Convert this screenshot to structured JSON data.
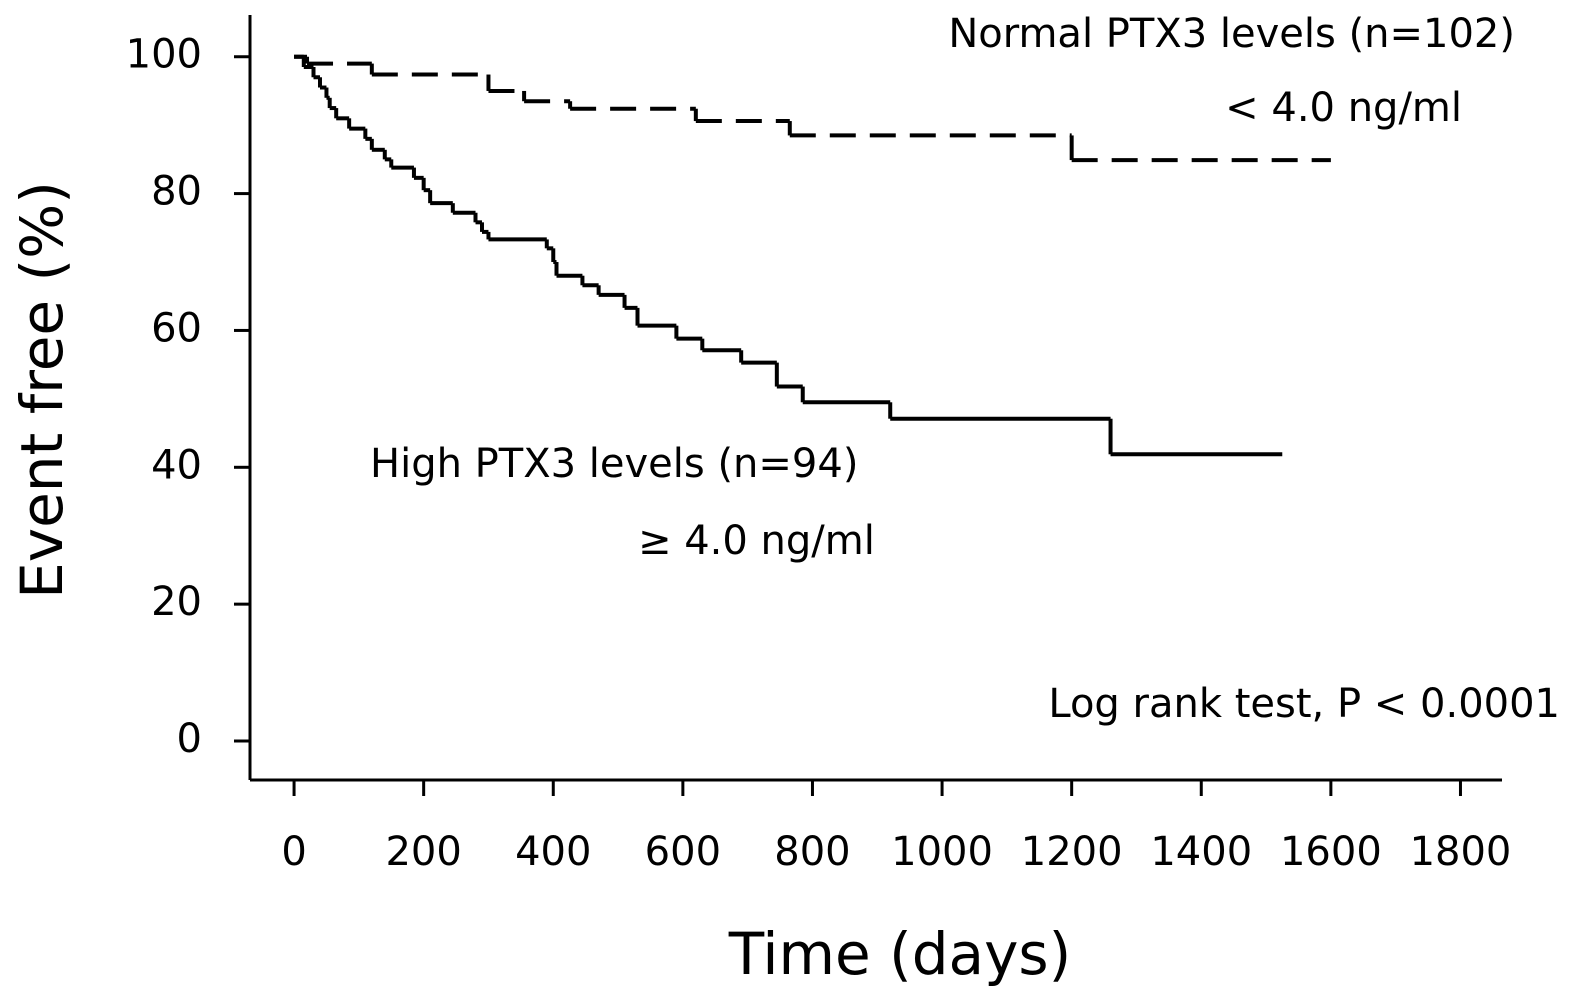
{
  "chart_data": {
    "type": "step",
    "xlabel": "Time (days)",
    "ylabel": "Event free (%)",
    "xlim": [
      -68,
      1861
    ],
    "ylim": [
      -5.7,
      106.1
    ],
    "xticks": [
      0,
      200,
      400,
      600,
      800,
      1000,
      1200,
      1400,
      1600,
      1800
    ],
    "yticks": [
      0,
      20,
      40,
      60,
      80,
      100
    ],
    "series": [
      {
        "color": "#000000",
        "dashed": true,
        "x": [
          0,
          20,
          120,
          300,
          355,
          426,
          620,
          765,
          1200,
          1600
        ],
        "values": [
          100,
          99,
          97.4,
          95.0,
          93.5,
          92.4,
          90.6,
          88.5,
          84.9,
          84.9
        ]
      },
      {
        "color": "#000000",
        "dashed": false,
        "x": [
          0,
          15,
          30,
          40,
          50,
          55,
          65,
          85,
          110,
          120,
          140,
          150,
          185,
          200,
          210,
          245,
          280,
          290,
          300,
          390,
          400,
          405,
          445,
          470,
          510,
          530,
          590,
          630,
          690,
          745,
          785,
          920,
          1260,
          1525
        ],
        "values": [
          100,
          98.5,
          97,
          95.5,
          94,
          92.5,
          91,
          89.5,
          88,
          86.4,
          85,
          83.8,
          82.3,
          80.5,
          78.6,
          77.2,
          75.8,
          74.4,
          73.3,
          72,
          70,
          68,
          66.6,
          65.2,
          63.3,
          60.7,
          58.8,
          57.1,
          55.3,
          51.8,
          49.5,
          47.1,
          41.9,
          41.9
        ]
      }
    ],
    "annotations": [
      "Normal PTX3 levels (n=102)",
      "< 4.0 ng/ml",
      "High PTX3 levels (n=94)",
      "≥ 4.0 ng/ml",
      "Log rank test, P < 0.0001"
    ]
  }
}
